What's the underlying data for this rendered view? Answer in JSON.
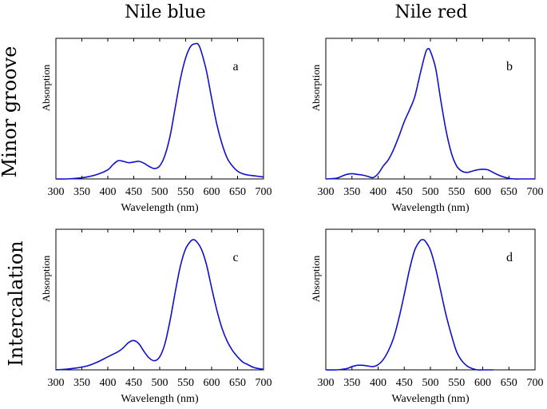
{
  "figure": {
    "column_titles": [
      "Nile blue",
      "Nile red"
    ],
    "row_titles": [
      "Minor groove",
      "Intercalation"
    ]
  },
  "chart_data": [
    {
      "type": "line",
      "panel": "a",
      "dye": "Nile blue",
      "binding_mode": "Minor groove",
      "xlabel": "Wavelength (nm)",
      "ylabel": "Absorption",
      "xlim": [
        300,
        700
      ],
      "ylim": [
        0,
        1.08
      ],
      "xticks": [
        "300",
        "350",
        "400",
        "450",
        "500",
        "550",
        "600",
        "650",
        "700"
      ],
      "series": [
        {
          "name": "Nile blue, minor groove",
          "x": [
            300,
            320,
            340,
            360,
            380,
            400,
            410,
            420,
            430,
            440,
            450,
            460,
            470,
            480,
            490,
            500,
            510,
            520,
            530,
            540,
            550,
            560,
            570,
            575,
            580,
            590,
            600,
            610,
            620,
            630,
            640,
            650,
            660,
            670,
            680,
            690,
            700
          ],
          "y": [
            0,
            0,
            0.005,
            0.015,
            0.035,
            0.07,
            0.11,
            0.14,
            0.135,
            0.125,
            0.13,
            0.135,
            0.12,
            0.095,
            0.08,
            0.1,
            0.18,
            0.33,
            0.55,
            0.77,
            0.93,
            1.02,
            1.04,
            1.03,
            0.98,
            0.83,
            0.62,
            0.42,
            0.27,
            0.16,
            0.1,
            0.06,
            0.04,
            0.03,
            0.025,
            0.02,
            0.015
          ]
        }
      ]
    },
    {
      "type": "line",
      "panel": "b",
      "dye": "Nile red",
      "binding_mode": "Minor groove",
      "xlabel": "Wavelength (nm)",
      "ylabel": "Absorption",
      "xlim": [
        300,
        700
      ],
      "ylim": [
        0,
        1.08
      ],
      "xticks": [
        "300",
        "350",
        "400",
        "450",
        "500",
        "550",
        "600",
        "650",
        "700"
      ],
      "series": [
        {
          "name": "Nile red, minor groove",
          "x": [
            300,
            320,
            330,
            340,
            350,
            360,
            370,
            380,
            390,
            400,
            410,
            420,
            430,
            440,
            450,
            460,
            470,
            480,
            490,
            495,
            500,
            510,
            520,
            530,
            540,
            550,
            560,
            570,
            580,
            590,
            600,
            610,
            620,
            630,
            640,
            650,
            660,
            670,
            680,
            690,
            700
          ],
          "y": [
            0,
            0.005,
            0.02,
            0.035,
            0.04,
            0.035,
            0.03,
            0.02,
            0.01,
            0.04,
            0.1,
            0.15,
            0.23,
            0.33,
            0.44,
            0.53,
            0.63,
            0.8,
            0.96,
            1.0,
            0.98,
            0.85,
            0.6,
            0.37,
            0.2,
            0.1,
            0.06,
            0.05,
            0.06,
            0.07,
            0.075,
            0.07,
            0.05,
            0.03,
            0.015,
            0.005,
            0,
            0,
            0,
            0,
            0
          ]
        }
      ]
    },
    {
      "type": "line",
      "panel": "c",
      "dye": "Nile blue",
      "binding_mode": "Intercalation",
      "xlabel": "Wavelength (nm)",
      "ylabel": "Absorption",
      "xlim": [
        300,
        700
      ],
      "ylim": [
        0,
        1.08
      ],
      "xticks": [
        "300",
        "350",
        "400",
        "450",
        "500",
        "550",
        "600",
        "650",
        "700"
      ],
      "series": [
        {
          "name": "Nile blue, intercalation",
          "x": [
            300,
            320,
            340,
            360,
            380,
            400,
            410,
            420,
            430,
            440,
            450,
            460,
            470,
            480,
            490,
            500,
            510,
            520,
            530,
            540,
            550,
            560,
            565,
            570,
            580,
            590,
            600,
            610,
            620,
            630,
            640,
            650,
            660,
            670,
            680,
            690,
            700
          ],
          "y": [
            0,
            0.005,
            0.015,
            0.03,
            0.06,
            0.1,
            0.12,
            0.14,
            0.17,
            0.21,
            0.225,
            0.2,
            0.14,
            0.09,
            0.07,
            0.1,
            0.2,
            0.38,
            0.6,
            0.8,
            0.93,
            0.99,
            1.0,
            0.99,
            0.93,
            0.81,
            0.63,
            0.46,
            0.32,
            0.22,
            0.15,
            0.1,
            0.06,
            0.04,
            0.02,
            0.01,
            0.005
          ]
        }
      ]
    },
    {
      "type": "line",
      "panel": "d",
      "dye": "Nile red",
      "binding_mode": "Intercalation",
      "xlabel": "Wavelength (nm)",
      "ylabel": "Absorption",
      "xlim": [
        300,
        700
      ],
      "ylim": [
        0,
        1.08
      ],
      "xticks": [
        "300",
        "350",
        "400",
        "450",
        "500",
        "550",
        "600",
        "650",
        "700"
      ],
      "series": [
        {
          "name": "Nile red, intercalation",
          "x": [
            300,
            320,
            340,
            350,
            360,
            370,
            380,
            390,
            400,
            410,
            420,
            430,
            440,
            450,
            460,
            470,
            480,
            485,
            490,
            500,
            510,
            520,
            530,
            540,
            550,
            560,
            570,
            580,
            590,
            600,
            610,
            620
          ],
          "y": [
            0,
            0,
            0.01,
            0.025,
            0.035,
            0.035,
            0.03,
            0.025,
            0.04,
            0.08,
            0.15,
            0.25,
            0.4,
            0.58,
            0.77,
            0.92,
            0.99,
            1.0,
            0.99,
            0.92,
            0.78,
            0.6,
            0.42,
            0.27,
            0.14,
            0.07,
            0.03,
            0.01,
            0,
            0,
            0,
            0
          ]
        }
      ]
    }
  ]
}
